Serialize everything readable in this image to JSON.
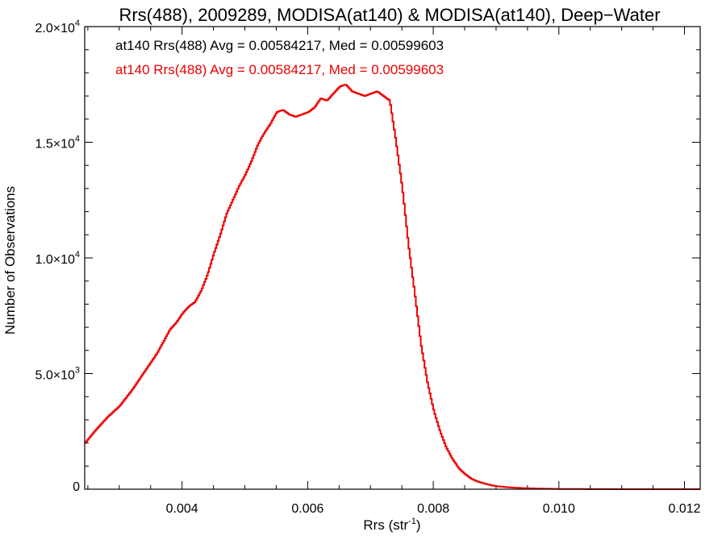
{
  "chart_data": {
    "type": "line",
    "title": "Rrs(488), 2009289, MODISA(at140) & MODISA(at140), Deep−Water",
    "xlabel": "Rrs (str",
    "xlabel_sup": "-1",
    "xlabel_close": ")",
    "ylabel": "Number of Observations",
    "xlim": [
      0.00245,
      0.01225
    ],
    "ylim": [
      0,
      20000
    ],
    "x_ticks": [
      {
        "value": 0.004,
        "label": "0.004"
      },
      {
        "value": 0.006,
        "label": "0.006"
      },
      {
        "value": 0.008,
        "label": "0.008"
      },
      {
        "value": 0.01,
        "label": "0.010"
      },
      {
        "value": 0.012,
        "label": "0.012"
      }
    ],
    "y_ticks": [
      {
        "value": 0,
        "mant": "0",
        "exp": ""
      },
      {
        "value": 5000,
        "mant": "5.0×10",
        "exp": "3"
      },
      {
        "value": 10000,
        "mant": "1.0×10",
        "exp": "4"
      },
      {
        "value": 15000,
        "mant": "1.5×10",
        "exp": "4"
      },
      {
        "value": 20000,
        "mant": "2.0×10",
        "exp": "4"
      }
    ],
    "legend": [
      {
        "text": "at140 Rrs(488) Avg = 0.00584217, Med = 0.00599603",
        "color": "#000000"
      },
      {
        "text": "at140 Rrs(488) Avg = 0.00584217, Med = 0.00599603",
        "color": "#ee0000"
      }
    ],
    "series": [
      {
        "color": "#ee0000",
        "x": [
          0.00245,
          0.0026,
          0.0028,
          0.003,
          0.0032,
          0.0034,
          0.0036,
          0.0037,
          0.0038,
          0.0039,
          0.004,
          0.0041,
          0.0042,
          0.0043,
          0.0044,
          0.0045,
          0.0046,
          0.0047,
          0.0048,
          0.0049,
          0.005,
          0.0051,
          0.0052,
          0.0053,
          0.0054,
          0.0055,
          0.0056,
          0.0057,
          0.0058,
          0.0059,
          0.006,
          0.0061,
          0.0062,
          0.0063,
          0.0064,
          0.0065,
          0.0066,
          0.0067,
          0.0068,
          0.0069,
          0.007,
          0.0071,
          0.0072,
          0.0073,
          0.0074,
          0.0075,
          0.0076,
          0.0077,
          0.0078,
          0.0079,
          0.008,
          0.0081,
          0.0082,
          0.0083,
          0.0084,
          0.0085,
          0.0086,
          0.0087,
          0.0088,
          0.0089,
          0.009,
          0.0092,
          0.0094,
          0.0096,
          0.0098,
          0.01,
          0.0102,
          0.0104,
          0.0106,
          0.0108,
          0.011,
          0.0115,
          0.012,
          0.01225
        ],
        "y": [
          2000,
          2500,
          3100,
          3600,
          4300,
          5100,
          5900,
          6400,
          6900,
          7200,
          7600,
          7900,
          8100,
          8600,
          9300,
          10200,
          11000,
          11900,
          12500,
          13100,
          13600,
          14200,
          14900,
          15400,
          15800,
          16300,
          16400,
          16200,
          16100,
          16200,
          16300,
          16500,
          16900,
          16800,
          17100,
          17400,
          17500,
          17200,
          17100,
          17000,
          17100,
          17200,
          17000,
          16800,
          15000,
          13000,
          10500,
          8400,
          6200,
          4600,
          3400,
          2500,
          1800,
          1300,
          900,
          650,
          450,
          330,
          250,
          180,
          130,
          80,
          50,
          30,
          20,
          12,
          8,
          5,
          3,
          2,
          1,
          0,
          0,
          0
        ]
      }
    ]
  }
}
